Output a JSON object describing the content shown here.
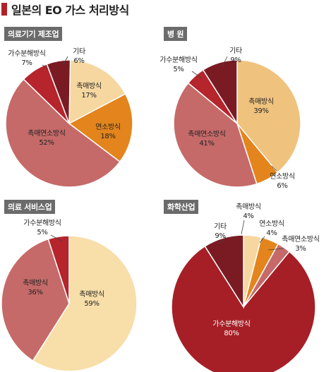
{
  "page": {
    "title": "일본의 EO 가스 처리방식"
  },
  "colors": {
    "title_mark": "#b0222a",
    "label_bg": "#6b6b6b"
  },
  "chart_data": [
    {
      "type": "pie",
      "title": "의료기기 제조업",
      "slices": [
        {
          "name": "촉매방식",
          "value": 17,
          "label": "17%",
          "color": "#f6d7a0"
        },
        {
          "name": "연소방식",
          "value": 18,
          "label": "18%",
          "color": "#e3851c"
        },
        {
          "name": "촉매연소방식",
          "value": 52,
          "label": "52%",
          "color": "#c56a68"
        },
        {
          "name": "가수분해방식",
          "value": 7,
          "label": "7%",
          "color": "#b6242c"
        },
        {
          "name": "기타",
          "value": 6,
          "label": "6%",
          "color": "#7a1b23"
        }
      ]
    },
    {
      "type": "pie",
      "title": "병 원",
      "slices": [
        {
          "name": "촉매방식",
          "value": 39,
          "label": "39%",
          "color": "#efc27e"
        },
        {
          "name": "연소방식",
          "value": 6,
          "label": "6%",
          "color": "#e3851c"
        },
        {
          "name": "촉매연소방식",
          "value": 41,
          "label": "41%",
          "color": "#c56a68"
        },
        {
          "name": "가수분해방식",
          "value": 5,
          "label": "5%",
          "color": "#b6242c"
        },
        {
          "name": "기타",
          "value": 9,
          "label": "9%",
          "color": "#7a1b23"
        }
      ]
    },
    {
      "type": "pie",
      "title": "의료 서비스업",
      "slices": [
        {
          "name": "촉매방식",
          "value": 59,
          "label": "59%",
          "color": "#f8dea8"
        },
        {
          "name": "촉매방식",
          "value": 36,
          "label": "36%",
          "color": "#c56a68"
        },
        {
          "name": "가수분해방식",
          "value": 5,
          "label": "5%",
          "color": "#b6242c"
        }
      ]
    },
    {
      "type": "pie",
      "title": "화학산업",
      "slices": [
        {
          "name": "촉매방식",
          "value": 4,
          "label": "4%",
          "color": "#f6d7a0"
        },
        {
          "name": "연소방식",
          "value": 4,
          "label": "4%",
          "color": "#e3851c"
        },
        {
          "name": "촉매연소방식",
          "value": 3,
          "label": "3%",
          "color": "#c56a68"
        },
        {
          "name": "가수분해방식",
          "value": 80,
          "label": "80%",
          "color": "#a61f26"
        },
        {
          "name": "기타",
          "value": 9,
          "label": "9%",
          "color": "#7a1b23"
        }
      ]
    }
  ]
}
